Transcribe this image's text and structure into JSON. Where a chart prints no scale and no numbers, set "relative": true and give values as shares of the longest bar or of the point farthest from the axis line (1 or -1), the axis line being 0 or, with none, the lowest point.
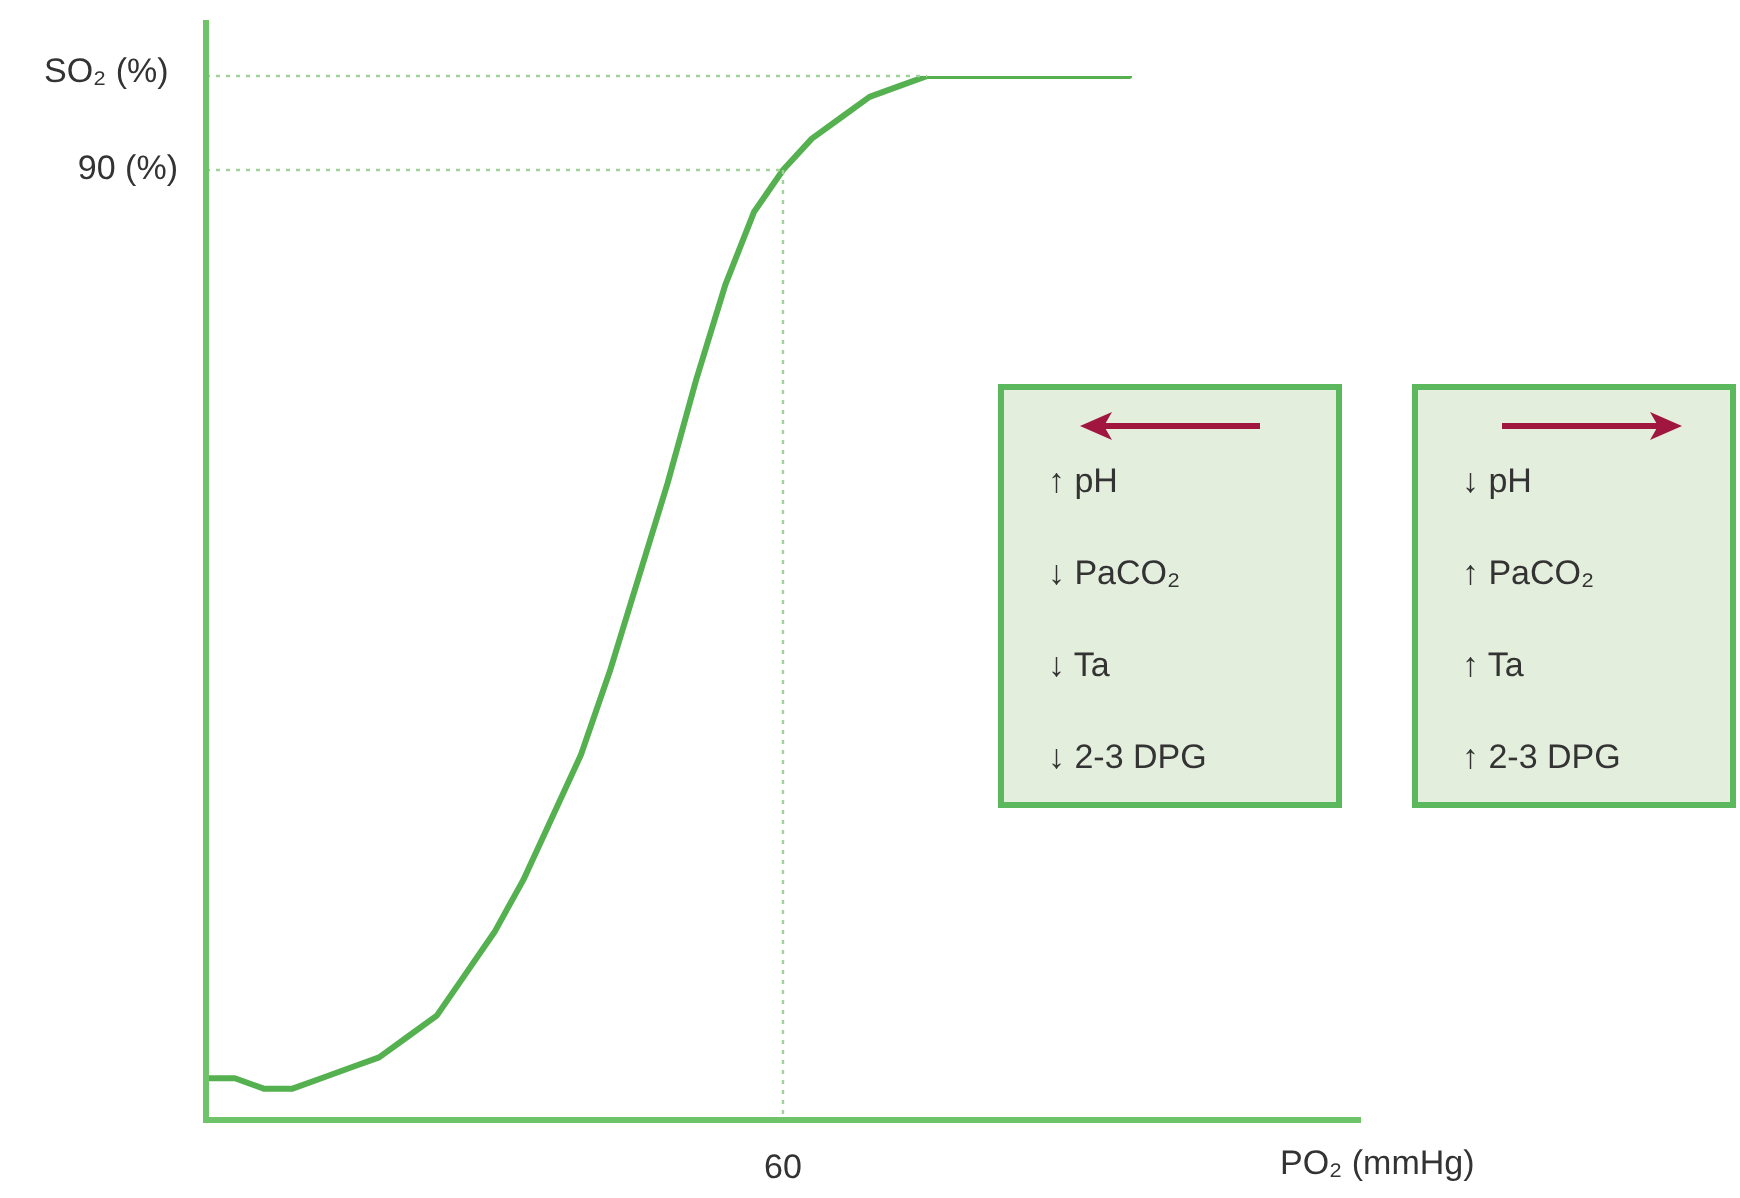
{
  "chart_data": {
    "type": "line",
    "relative": true,
    "ylabel": "SO₂ (%)",
    "xlabel": "PO₂ (mmHg)",
    "categories": [
      null,
      null,
      null,
      null,
      null,
      null,
      null,
      null,
      null,
      null,
      null,
      null,
      null,
      null,
      null,
      null,
      null,
      null,
      null,
      null,
      null,
      null,
      null,
      null,
      null,
      null,
      null,
      null,
      null,
      null,
      null,
      null,
      null,
      null,
      null,
      null,
      null,
      null,
      null,
      null,
      null
    ],
    "series": [
      {
        "color": "#55b04f",
        "values": [
          0.04,
          0.04,
          0.03,
          0.03,
          0.04,
          0.05,
          0.06,
          0.08,
          0.1,
          0.14,
          0.18,
          0.23,
          0.29,
          0.35,
          0.43,
          0.52,
          0.61,
          0.71,
          0.8,
          0.87,
          0.91,
          0.94,
          0.96,
          0.98,
          0.99,
          1,
          1,
          1,
          1,
          1,
          1,
          1,
          1,
          null,
          null,
          null,
          null,
          null,
          null,
          null,
          null
        ]
      }
    ],
    "ref_lines": [
      {
        "axis": "y",
        "value": 1,
        "color": "#9fd39a",
        "line_style": "dotted"
      },
      {
        "axis": "y",
        "value": 0.91,
        "color": "#9fd39a",
        "line_style": "dotted"
      }
    ],
    "annotations": [
      "90 (%)",
      "60",
      "↑ pH",
      "↓ PaCO₂",
      "↓ Ta",
      "↓ 2-3 DPG",
      "↓ pH",
      "↑ PaCO₂",
      "↑ Ta",
      "↑ 2-3 DPG"
    ],
    "legend": false,
    "marker": "none",
    "line_style": "solid"
  }
}
